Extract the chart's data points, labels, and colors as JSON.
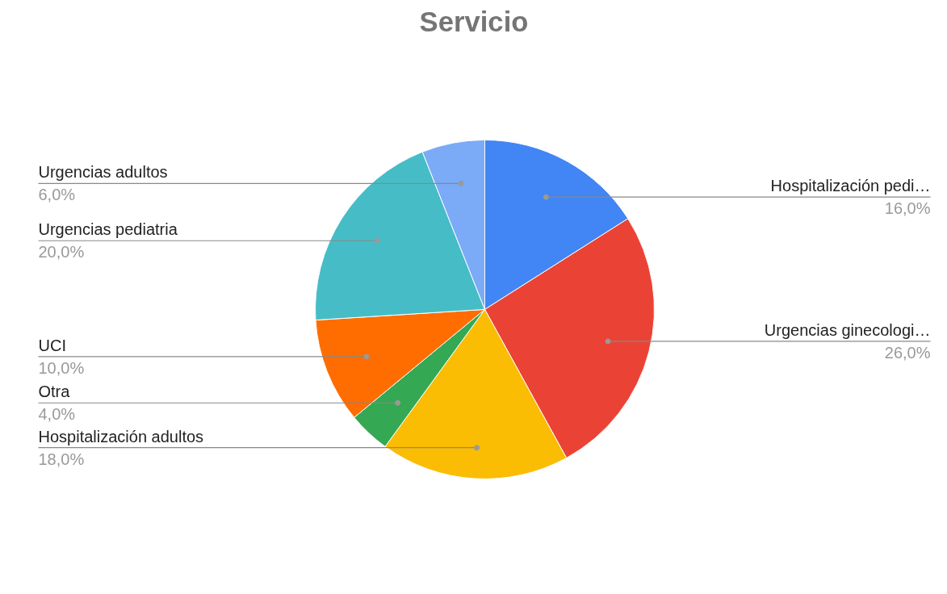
{
  "chart_data": {
    "type": "pie",
    "title": "Servicio",
    "categories": [
      "Hospitalización pedi…",
      "Urgencias ginecologi…",
      "Hospitalización adultos",
      "Otra",
      "UCI",
      "Urgencias pediatria",
      "Urgencias adultos"
    ],
    "values": [
      16,
      26,
      18,
      4,
      10,
      20,
      6
    ],
    "colors": [
      "#4285f4",
      "#ea4335",
      "#fbbc04",
      "#34a853",
      "#ff6d01",
      "#46bdc6",
      "#7baaf7"
    ],
    "value_labels": [
      "16,0%",
      "26,0%",
      "18,0%",
      "4,0%",
      "10,0%",
      "20,0%",
      "6,0%"
    ]
  }
}
